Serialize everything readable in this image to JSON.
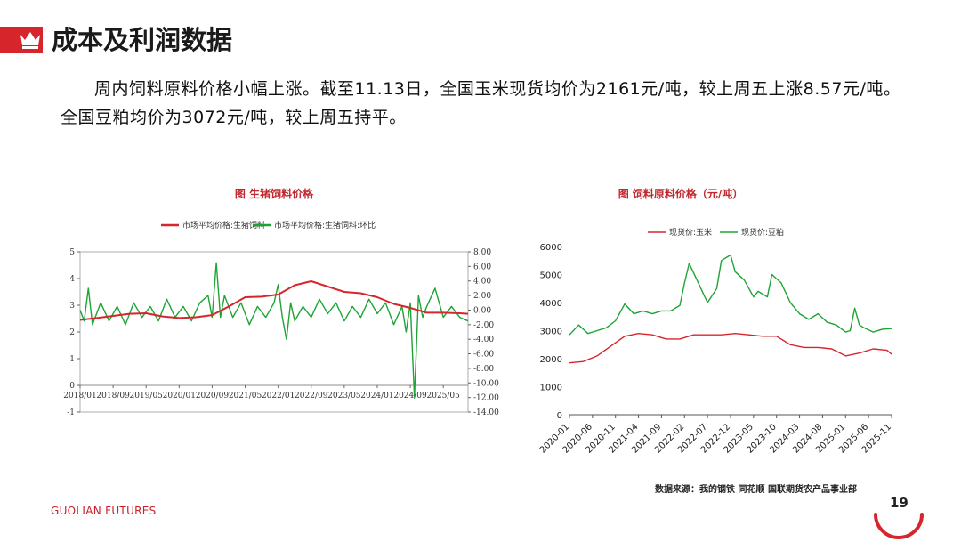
{
  "slide": {
    "title": "成本及利润数据",
    "body": "周内饲料原料价格小幅上涨。截至11.13日，全国玉米现货均价为2161元/吨，较上周五上涨8.57元/吨。全国豆粕均价为3072元/吨，较上周五持平。",
    "source": "数据来源：我的钢铁  同花顺  国联期货农产品事业部",
    "footer_logo": "GUOLIAN FUTURES",
    "page_number": "19"
  },
  "colors": {
    "accent": "#d7262b",
    "red_series": "#d7262b",
    "green_series": "#1fa336"
  },
  "icons": {
    "header": "crown-icon"
  },
  "chart_data": [
    {
      "type": "line",
      "title": "图  生猪饲料价格",
      "xlabel": "",
      "ylabel": "",
      "x_ticks": [
        "2018/01",
        "2018/09",
        "2019/05",
        "2020/01",
        "2020/09",
        "2021/05",
        "2022/01",
        "2022/09",
        "2023/05",
        "2024/01",
        "2024/09",
        "2025/05"
      ],
      "ylim": [
        -1,
        5
      ],
      "y_ticks": [
        "-1",
        "0",
        "1",
        "2",
        "3",
        "4",
        "5"
      ],
      "y2lim": [
        -14,
        8
      ],
      "y2_ticks": [
        "-14.00",
        "-12.00",
        "-10.00",
        "-8.00",
        "-6.00",
        "-4.00",
        "-2.00",
        "0.00",
        "2.00",
        "4.00",
        "6.00",
        "8.00"
      ],
      "grid": false,
      "legend": "top",
      "series": [
        {
          "name": "市场平均价格:生猪饲料",
          "axis": "left",
          "color": "#d7262b",
          "x": [
            "2018/01",
            "2018/05",
            "2018/09",
            "2019/01",
            "2019/05",
            "2019/09",
            "2020/01",
            "2020/05",
            "2020/09",
            "2021/01",
            "2021/05",
            "2021/09",
            "2022/01",
            "2022/05",
            "2022/09",
            "2023/01",
            "2023/05",
            "2023/09",
            "2024/01",
            "2024/05",
            "2024/09",
            "2025/01",
            "2025/05",
            "2025/09",
            "2025/11"
          ],
          "y": [
            2.45,
            2.52,
            2.6,
            2.68,
            2.7,
            2.58,
            2.52,
            2.55,
            2.63,
            2.95,
            3.3,
            3.32,
            3.4,
            3.75,
            3.9,
            3.7,
            3.5,
            3.45,
            3.3,
            3.05,
            2.9,
            2.72,
            2.72,
            2.7,
            2.68
          ]
        },
        {
          "name": "市场平均价格:生猪饲料:环比",
          "axis": "right",
          "color": "#1fa336",
          "x": [
            "2018/01",
            "2018/02",
            "2018/03",
            "2018/04",
            "2018/06",
            "2018/08",
            "2018/10",
            "2018/12",
            "2019/02",
            "2019/04",
            "2019/06",
            "2019/08",
            "2019/10",
            "2019/12",
            "2020/02",
            "2020/04",
            "2020/06",
            "2020/08",
            "2020/09",
            "2020/10",
            "2020/11",
            "2020/12",
            "2021/02",
            "2021/04",
            "2021/06",
            "2021/08",
            "2021/10",
            "2021/12",
            "2022/01",
            "2022/02",
            "2022/03",
            "2022/04",
            "2022/05",
            "2022/07",
            "2022/09",
            "2022/11",
            "2023/01",
            "2023/03",
            "2023/05",
            "2023/07",
            "2023/09",
            "2023/11",
            "2024/01",
            "2024/03",
            "2024/05",
            "2024/07",
            "2024/08",
            "2024/09",
            "2024/10",
            "2024/11",
            "2024/12",
            "2025/01",
            "2025/03",
            "2025/05",
            "2025/07",
            "2025/09",
            "2025/11"
          ],
          "y": [
            0,
            -1.5,
            3,
            -2,
            1,
            -1.5,
            0.5,
            -2,
            1,
            -1,
            0.5,
            -1.5,
            1.5,
            -1,
            0.5,
            -1.5,
            1,
            2,
            -1,
            6.5,
            -1,
            2,
            -1,
            1,
            -2,
            0.5,
            -1,
            1,
            3.5,
            -1,
            -4,
            1,
            -1.5,
            0.5,
            -1,
            1.5,
            -0.5,
            1,
            -1.5,
            0.5,
            -1,
            1.5,
            -0.5,
            1,
            -2,
            0.5,
            -3,
            1,
            -12,
            2,
            -1,
            0.5,
            3,
            -1,
            0.5,
            -1,
            -1.5
          ]
        }
      ]
    },
    {
      "type": "line",
      "title": "图     饲料原料价格（元/吨）",
      "xlabel": "",
      "ylabel": "",
      "x_ticks": [
        "2020-01",
        "2020-06",
        "2020-11",
        "2021-04",
        "2021-09",
        "2022-02",
        "2022-07",
        "2022-12",
        "2023-05",
        "2023-10",
        "2024-03",
        "2024-08",
        "2025-01",
        "2025-06",
        "2025-11"
      ],
      "ylim": [
        0,
        6000
      ],
      "y_ticks": [
        "0",
        "1000",
        "2000",
        "3000",
        "4000",
        "5000",
        "6000"
      ],
      "grid": false,
      "legend": "top",
      "series": [
        {
          "name": "现货价:玉米",
          "color": "#d7262b",
          "x": [
            "2020-01",
            "2020-04",
            "2020-07",
            "2020-10",
            "2021-01",
            "2021-04",
            "2021-07",
            "2021-10",
            "2022-01",
            "2022-04",
            "2022-07",
            "2022-10",
            "2023-01",
            "2023-04",
            "2023-07",
            "2023-10",
            "2024-01",
            "2024-04",
            "2024-07",
            "2024-10",
            "2025-01",
            "2025-04",
            "2025-07",
            "2025-10",
            "2025-11"
          ],
          "y": [
            1850,
            1900,
            2100,
            2450,
            2800,
            2900,
            2850,
            2700,
            2700,
            2850,
            2850,
            2850,
            2900,
            2850,
            2800,
            2800,
            2500,
            2400,
            2400,
            2350,
            2100,
            2200,
            2350,
            2300,
            2161
          ]
        },
        {
          "name": "现货价:豆粕",
          "color": "#1fa336",
          "x": [
            "2020-01",
            "2020-03",
            "2020-05",
            "2020-07",
            "2020-09",
            "2020-11",
            "2021-01",
            "2021-03",
            "2021-05",
            "2021-07",
            "2021-09",
            "2021-11",
            "2022-01",
            "2022-02",
            "2022-03",
            "2022-05",
            "2022-07",
            "2022-09",
            "2022-10",
            "2022-12",
            "2023-01",
            "2023-03",
            "2023-05",
            "2023-06",
            "2023-08",
            "2023-09",
            "2023-11",
            "2024-01",
            "2024-03",
            "2024-05",
            "2024-07",
            "2024-09",
            "2024-11",
            "2025-01",
            "2025-02",
            "2025-03",
            "2025-04",
            "2025-05",
            "2025-07",
            "2025-09",
            "2025-11"
          ],
          "y": [
            2850,
            3200,
            2900,
            3000,
            3100,
            3350,
            3950,
            3600,
            3700,
            3600,
            3700,
            3700,
            3900,
            4700,
            5400,
            4700,
            4000,
            4500,
            5500,
            5700,
            5100,
            4800,
            4200,
            4400,
            4200,
            5000,
            4700,
            4000,
            3600,
            3400,
            3600,
            3300,
            3200,
            2950,
            3000,
            3800,
            3200,
            3100,
            2950,
            3050,
            3072
          ]
        }
      ]
    }
  ]
}
